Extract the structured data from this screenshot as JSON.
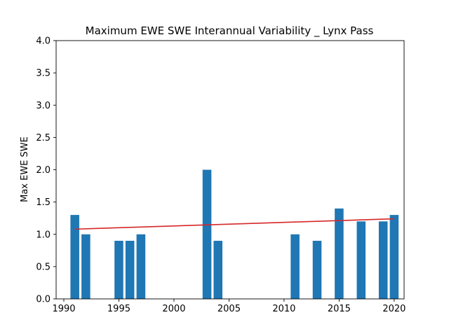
{
  "chart_data": {
    "type": "bar",
    "title": "Maximum EWE SWE Interannual Variability _ Lynx Pass",
    "xlabel": "",
    "ylabel": "Max EWE SWE",
    "xlim": [
      1989.3,
      2020.9
    ],
    "ylim": [
      0,
      4.0
    ],
    "x_ticks": [
      1990,
      1995,
      2000,
      2005,
      2010,
      2015,
      2020
    ],
    "y_ticks": [
      0.0,
      0.5,
      1.0,
      1.5,
      2.0,
      2.5,
      3.0,
      3.5,
      4.0
    ],
    "grid": false,
    "bar_color": "#1f77b4",
    "bars": [
      {
        "x": 1991,
        "value": 1.3
      },
      {
        "x": 1992,
        "value": 1.0
      },
      {
        "x": 1995,
        "value": 0.9
      },
      {
        "x": 1996,
        "value": 0.9
      },
      {
        "x": 1997,
        "value": 1.0
      },
      {
        "x": 2003,
        "value": 2.0
      },
      {
        "x": 2004,
        "value": 0.9
      },
      {
        "x": 2011,
        "value": 1.0
      },
      {
        "x": 2013,
        "value": 0.9
      },
      {
        "x": 2015,
        "value": 1.4
      },
      {
        "x": 2017,
        "value": 1.2
      },
      {
        "x": 2019,
        "value": 1.2
      },
      {
        "x": 2020,
        "value": 1.3
      }
    ],
    "trend_line": {
      "color": "#d62728",
      "x": [
        1991,
        2020
      ],
      "y": [
        1.08,
        1.24
      ]
    }
  }
}
